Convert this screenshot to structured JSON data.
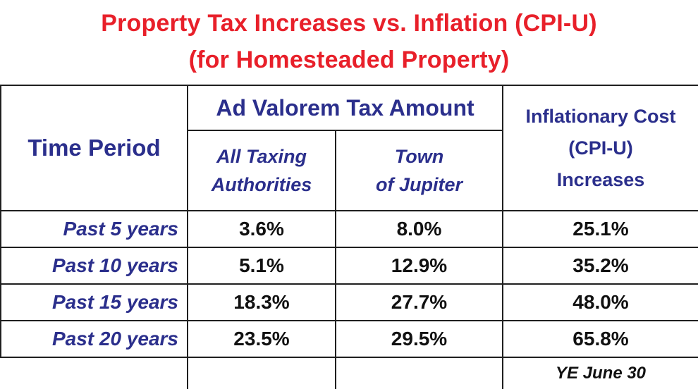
{
  "title_line1": "Property Tax Increases vs. Inflation (CPI-U)",
  "title_line2": "(for Homesteaded Property)",
  "chart_data": {
    "type": "table",
    "title": "Property Tax Increases vs. Inflation (CPI-U)",
    "subtitle": "(for Homesteaded Property)",
    "headers": {
      "time_period": "Time Period",
      "group": "Ad Valorem Tax Amount",
      "col1_line1": "All Taxing",
      "col1_line2": "Authorities",
      "col2_line1": "Town",
      "col2_line2": "of Jupiter",
      "col3_line1": "Inflationary Cost",
      "col3_line2": "(CPI-U)",
      "col3_line3": "Increases"
    },
    "rows": [
      {
        "period": "Past 5 years",
        "all_taxing": "3.6%",
        "jupiter": "8.0%",
        "cpi": "25.1%"
      },
      {
        "period": "Past 10 years",
        "all_taxing": "5.1%",
        "jupiter": "12.9%",
        "cpi": "35.2%"
      },
      {
        "period": "Past 15 years",
        "all_taxing": "18.3%",
        "jupiter": "27.7%",
        "cpi": "48.0%"
      },
      {
        "period": "Past 20 years",
        "all_taxing": "23.5%",
        "jupiter": "29.5%",
        "cpi": "65.8%"
      }
    ],
    "footnote": "YE June 30"
  }
}
